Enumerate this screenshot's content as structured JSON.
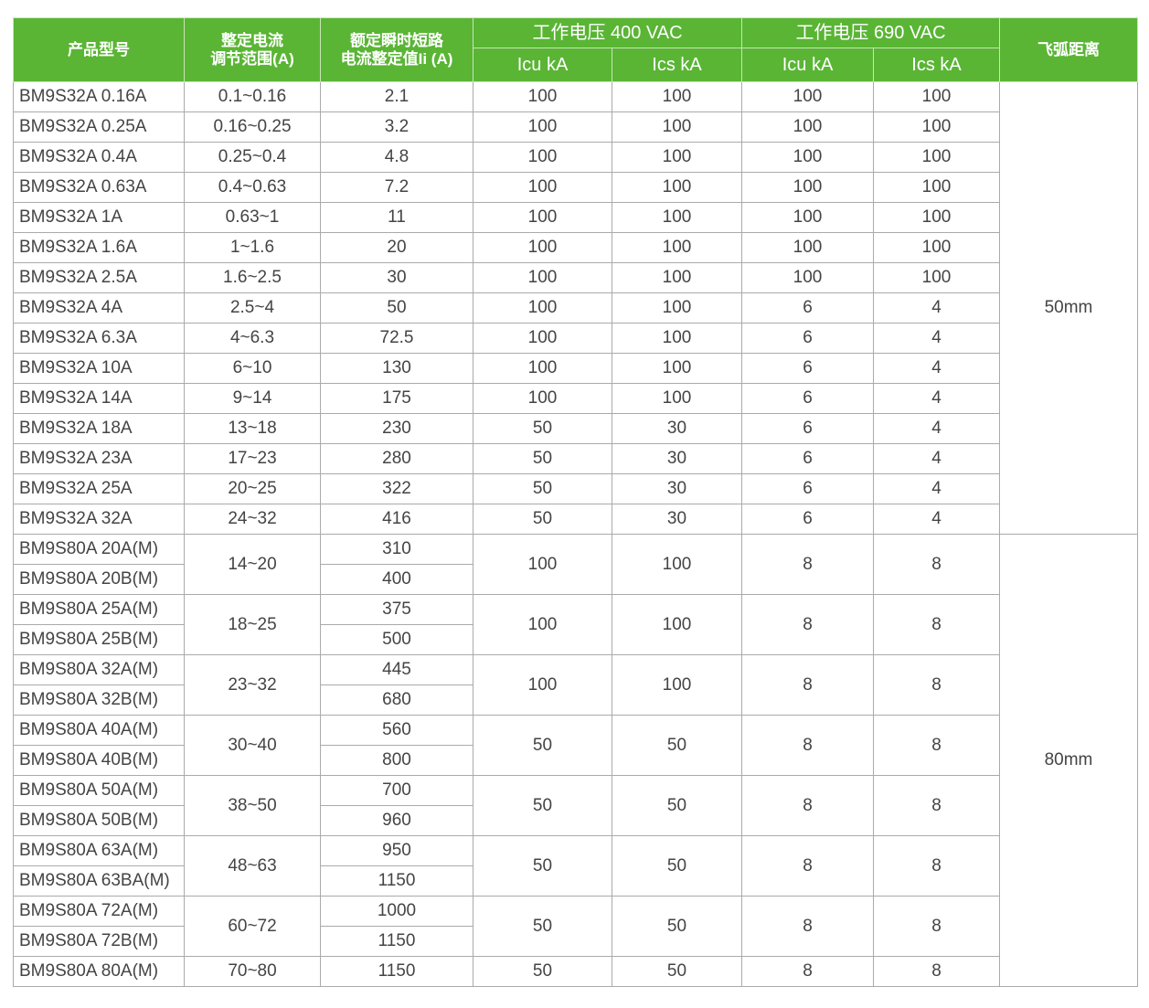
{
  "header": {
    "model": "产品型号",
    "range_line1": "整定电流",
    "range_line2": "调节范围(A)",
    "ii_line1": "额定瞬时短路",
    "ii_line2": "电流整定值Ii (A)",
    "v400": "工作电压 400 VAC",
    "v690": "工作电压 690 VAC",
    "icu": "Icu kA",
    "ics": "Ics kA",
    "arc": "飞弧距离"
  },
  "colors": {
    "header_bg": "#5ab535",
    "border": "#aaaaaa",
    "text": "#444444"
  },
  "s32": {
    "arc": "50mm",
    "rows": [
      [
        "BM9S32A 0.16A",
        "0.1~0.16",
        "2.1",
        "100",
        "100",
        "100",
        "100"
      ],
      [
        "BM9S32A 0.25A",
        "0.16~0.25",
        "3.2",
        "100",
        "100",
        "100",
        "100"
      ],
      [
        "BM9S32A 0.4A",
        "0.25~0.4",
        "4.8",
        "100",
        "100",
        "100",
        "100"
      ],
      [
        "BM9S32A 0.63A",
        "0.4~0.63",
        "7.2",
        "100",
        "100",
        "100",
        "100"
      ],
      [
        "BM9S32A 1A",
        "0.63~1",
        "11",
        "100",
        "100",
        "100",
        "100"
      ],
      [
        "BM9S32A 1.6A",
        "1~1.6",
        "20",
        "100",
        "100",
        "100",
        "100"
      ],
      [
        "BM9S32A 2.5A",
        "1.6~2.5",
        "30",
        "100",
        "100",
        "100",
        "100"
      ],
      [
        "BM9S32A 4A",
        "2.5~4",
        "50",
        "100",
        "100",
        "6",
        "4"
      ],
      [
        "BM9S32A 6.3A",
        "4~6.3",
        "72.5",
        "100",
        "100",
        "6",
        "4"
      ],
      [
        "BM9S32A 10A",
        "6~10",
        "130",
        "100",
        "100",
        "6",
        "4"
      ],
      [
        "BM9S32A 14A",
        "9~14",
        "175",
        "100",
        "100",
        "6",
        "4"
      ],
      [
        "BM9S32A 18A",
        "13~18",
        "230",
        "50",
        "30",
        "6",
        "4"
      ],
      [
        "BM9S32A 23A",
        "17~23",
        "280",
        "50",
        "30",
        "6",
        "4"
      ],
      [
        "BM9S32A 25A",
        "20~25",
        "322",
        "50",
        "30",
        "6",
        "4"
      ],
      [
        "BM9S32A 32A",
        "24~32",
        "416",
        "50",
        "30",
        "6",
        "4"
      ]
    ]
  },
  "s80": {
    "arc": "80mm",
    "groups": [
      {
        "models": [
          "BM9S80A 20A(M)",
          "BM9S80A 20B(M)"
        ],
        "range": "14~20",
        "ii": [
          "310",
          "400"
        ],
        "icu400": "100",
        "ics400": "100",
        "icu690": "8",
        "ics690": "8"
      },
      {
        "models": [
          "BM9S80A 25A(M)",
          "BM9S80A 25B(M)"
        ],
        "range": "18~25",
        "ii": [
          "375",
          "500"
        ],
        "icu400": "100",
        "ics400": "100",
        "icu690": "8",
        "ics690": "8"
      },
      {
        "models": [
          "BM9S80A 32A(M)",
          "BM9S80A 32B(M)"
        ],
        "range": "23~32",
        "ii": [
          "445",
          "680"
        ],
        "icu400": "100",
        "ics400": "100",
        "icu690": "8",
        "ics690": "8"
      },
      {
        "models": [
          "BM9S80A 40A(M)",
          "BM9S80A 40B(M)"
        ],
        "range": "30~40",
        "ii": [
          "560",
          "800"
        ],
        "icu400": "50",
        "ics400": "50",
        "icu690": "8",
        "ics690": "8"
      },
      {
        "models": [
          "BM9S80A 50A(M)",
          "BM9S80A 50B(M)"
        ],
        "range": "38~50",
        "ii": [
          "700",
          "960"
        ],
        "icu400": "50",
        "ics400": "50",
        "icu690": "8",
        "ics690": "8"
      },
      {
        "models": [
          "BM9S80A 63A(M)",
          "BM9S80A 63BA(M)"
        ],
        "range": "48~63",
        "ii": [
          "950",
          "1150"
        ],
        "icu400": "50",
        "ics400": "50",
        "icu690": "8",
        "ics690": "8"
      },
      {
        "models": [
          "BM9S80A 72A(M)",
          "BM9S80A 72B(M)"
        ],
        "range": "60~72",
        "ii": [
          "1000",
          "1150"
        ],
        "icu400": "50",
        "ics400": "50",
        "icu690": "8",
        "ics690": "8"
      },
      {
        "models": [
          "BM9S80A 80A(M)"
        ],
        "range": "70~80",
        "ii": [
          "1150"
        ],
        "icu400": "50",
        "ics400": "50",
        "icu690": "8",
        "ics690": "8"
      }
    ]
  }
}
